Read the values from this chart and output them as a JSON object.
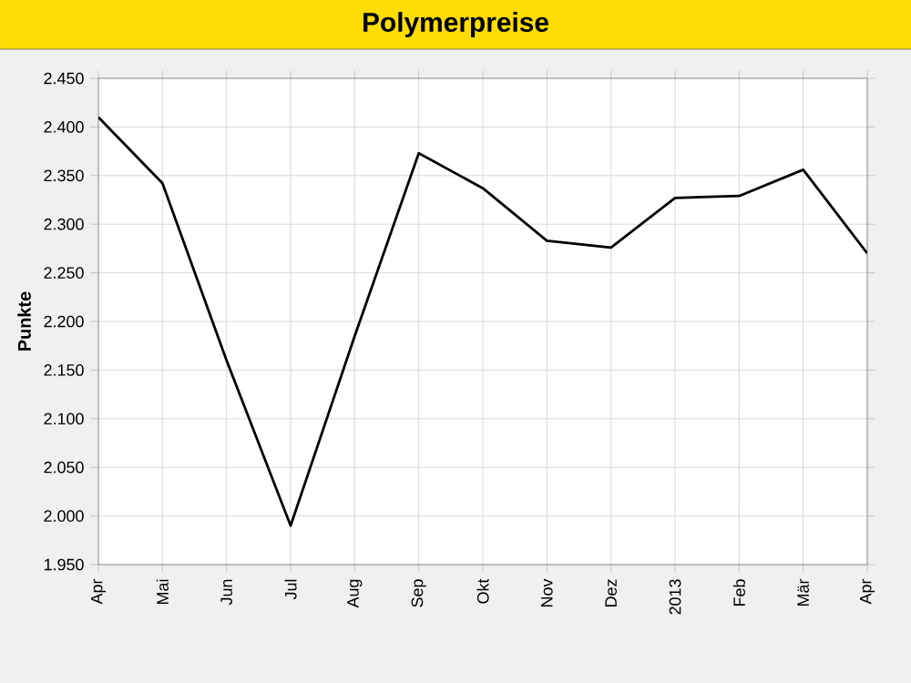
{
  "chart_data": {
    "type": "line",
    "title": "Polymerpreise",
    "ylabel": "Punkte",
    "categories": [
      "Apr",
      "Mai",
      "Jun",
      "Jul",
      "Aug",
      "Sep",
      "Okt",
      "Nov",
      "Dez",
      "2013",
      "Feb",
      "Mär",
      "Apr"
    ],
    "series": [
      {
        "color": "#000000",
        "values": [
          2410,
          2342,
          2160,
          1990,
          2185,
          2373,
          2337,
          2283,
          2276,
          2327,
          2329,
          2356,
          2270
        ]
      }
    ],
    "ylim": [
      1950,
      2450
    ],
    "yticks": [
      {
        "value": 1950,
        "label": "1.950"
      },
      {
        "value": 2000,
        "label": "2.000"
      },
      {
        "value": 2050,
        "label": "2.050"
      },
      {
        "value": 2100,
        "label": "2.100"
      },
      {
        "value": 2150,
        "label": "2.150"
      },
      {
        "value": 2200,
        "label": "2.200"
      },
      {
        "value": 2250,
        "label": "2.250"
      },
      {
        "value": 2300,
        "label": "2.300"
      },
      {
        "value": 2350,
        "label": "2.350"
      },
      {
        "value": 2400,
        "label": "2.400"
      },
      {
        "value": 2450,
        "label": "2.450"
      }
    ],
    "grid": true,
    "marker": "none",
    "line_style": "solid"
  }
}
